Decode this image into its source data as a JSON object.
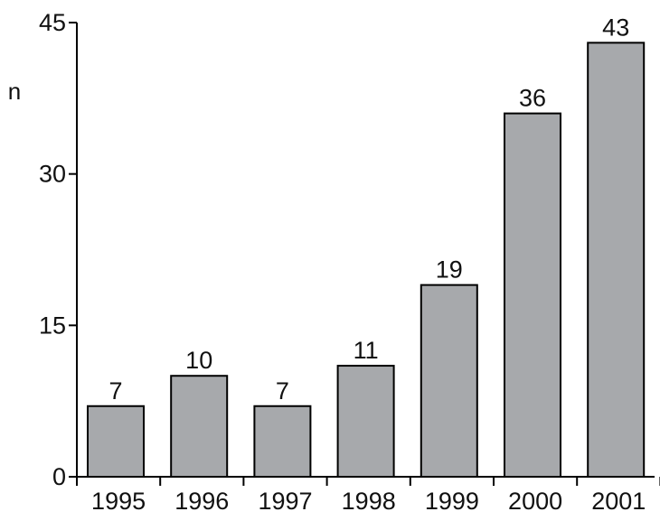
{
  "chart_data": {
    "type": "bar",
    "categories": [
      "1995",
      "1996",
      "1997",
      "1998",
      "1999",
      "2000",
      "2001"
    ],
    "values": [
      7,
      10,
      7,
      11,
      19,
      36,
      43
    ],
    "data_labels": [
      "7",
      "10",
      "7",
      "11",
      "19",
      "36",
      "43"
    ],
    "title": "",
    "xlabel": "",
    "ylabel": "n",
    "ylim": [
      0,
      45
    ],
    "yticks": [
      0,
      15,
      30,
      45
    ],
    "ytick_labels": [
      "0",
      "15",
      "30",
      "45"
    ],
    "grid": false,
    "legend": "none",
    "bar_color": "#a7a9ac",
    "edge_color": "#000000"
  }
}
